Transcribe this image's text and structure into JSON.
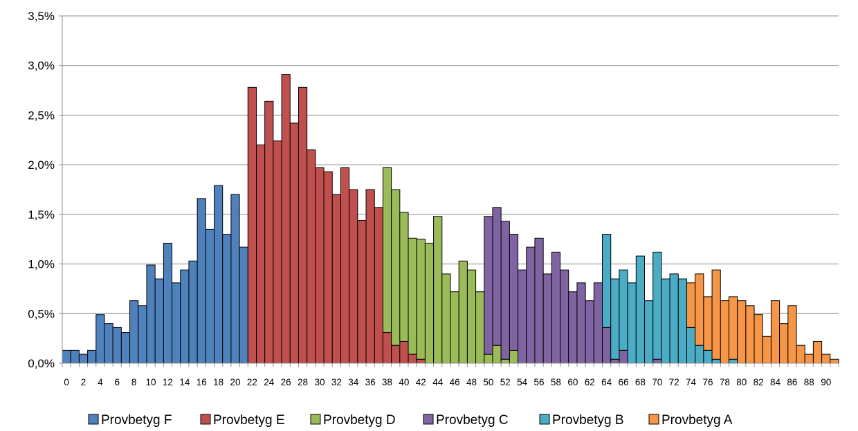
{
  "chart_data": {
    "type": "bar",
    "stacked": true,
    "x_start": 0,
    "x_step": 1,
    "x_count": 92,
    "xlabel": "",
    "ylabel": "",
    "ylim": [
      0,
      3.5
    ],
    "y_ticks": [
      0,
      0.5,
      1.0,
      1.5,
      2.0,
      2.5,
      3.0,
      3.5
    ],
    "y_tick_labels": [
      "0,0%",
      "0,5%",
      "1,0%",
      "1,5%",
      "2,0%",
      "2,5%",
      "3,0%",
      "3,5%"
    ],
    "x_tick_labels": [
      "0",
      "2",
      "4",
      "6",
      "8",
      "10",
      "12",
      "14",
      "16",
      "18",
      "20",
      "22",
      "24",
      "26",
      "28",
      "30",
      "32",
      "34",
      "36",
      "38",
      "40",
      "42",
      "44",
      "46",
      "48",
      "50",
      "52",
      "54",
      "56",
      "58",
      "60",
      "62",
      "64",
      "66",
      "68",
      "70",
      "72",
      "74",
      "76",
      "78",
      "80",
      "82",
      "84",
      "86",
      "88",
      "90"
    ],
    "grid": true,
    "legend_position": "bottom",
    "series": [
      {
        "name": "Provbetyg F",
        "color": "#4F81BD",
        "points": [
          [
            0,
            0.13
          ],
          [
            1,
            0.13
          ],
          [
            2,
            0.09
          ],
          [
            3,
            0.13
          ],
          [
            4,
            0.49
          ],
          [
            5,
            0.4
          ],
          [
            6,
            0.36
          ],
          [
            7,
            0.31
          ],
          [
            8,
            0.63
          ],
          [
            9,
            0.58
          ],
          [
            10,
            0.99
          ],
          [
            11,
            0.85
          ],
          [
            12,
            1.21
          ],
          [
            13,
            0.81
          ],
          [
            14,
            0.94
          ],
          [
            15,
            1.03
          ],
          [
            16,
            1.66
          ],
          [
            17,
            1.35
          ],
          [
            18,
            1.79
          ],
          [
            19,
            1.3
          ],
          [
            20,
            1.7
          ],
          [
            21,
            1.17
          ]
        ]
      },
      {
        "name": "Provbetyg E",
        "color": "#C0504D",
        "points": [
          [
            22,
            2.78
          ],
          [
            23,
            2.2
          ],
          [
            24,
            2.64
          ],
          [
            25,
            2.24
          ],
          [
            26,
            2.91
          ],
          [
            27,
            2.42
          ],
          [
            28,
            2.78
          ],
          [
            29,
            2.15
          ],
          [
            30,
            1.97
          ],
          [
            31,
            1.93
          ],
          [
            32,
            1.7
          ],
          [
            33,
            1.97
          ],
          [
            34,
            1.75
          ],
          [
            35,
            1.44
          ],
          [
            36,
            1.75
          ],
          [
            37,
            1.57
          ],
          [
            38,
            0.31
          ],
          [
            39,
            0.18
          ],
          [
            40,
            0.22
          ],
          [
            41,
            0.09
          ],
          [
            42,
            0.04
          ]
        ]
      },
      {
        "name": "Provbetyg D",
        "color": "#9BBB59",
        "points": [
          [
            38,
            1.66
          ],
          [
            39,
            1.57
          ],
          [
            40,
            1.3
          ],
          [
            41,
            1.17
          ],
          [
            42,
            1.21
          ],
          [
            43,
            1.21
          ],
          [
            44,
            1.48
          ],
          [
            45,
            0.9
          ],
          [
            46,
            0.72
          ],
          [
            47,
            1.03
          ],
          [
            48,
            0.94
          ],
          [
            49,
            0.72
          ],
          [
            50,
            0.09
          ],
          [
            51,
            0.18
          ],
          [
            52,
            0.04
          ],
          [
            53,
            0.13
          ]
        ]
      },
      {
        "name": "Provbetyg C",
        "color": "#8064A2",
        "points": [
          [
            50,
            1.39
          ],
          [
            51,
            1.39
          ],
          [
            52,
            1.39
          ],
          [
            53,
            1.17
          ],
          [
            54,
            0.94
          ],
          [
            55,
            1.17
          ],
          [
            56,
            1.26
          ],
          [
            57,
            0.9
          ],
          [
            58,
            1.12
          ],
          [
            59,
            0.94
          ],
          [
            60,
            0.72
          ],
          [
            61,
            0.81
          ],
          [
            62,
            0.63
          ],
          [
            63,
            0.81
          ],
          [
            64,
            0.36
          ],
          [
            65,
            0.04
          ],
          [
            66,
            0.13
          ],
          [
            70,
            0.04
          ]
        ]
      },
      {
        "name": "Provbetyg B",
        "color": "#4BACC6",
        "points": [
          [
            64,
            0.94
          ],
          [
            65,
            0.81
          ],
          [
            66,
            0.81
          ],
          [
            67,
            0.81
          ],
          [
            68,
            1.08
          ],
          [
            69,
            0.63
          ],
          [
            70,
            1.08
          ],
          [
            71,
            0.85
          ],
          [
            72,
            0.9
          ],
          [
            73,
            0.85
          ],
          [
            74,
            0.36
          ],
          [
            75,
            0.18
          ],
          [
            76,
            0.13
          ],
          [
            77,
            0.04
          ],
          [
            79,
            0.04
          ]
        ]
      },
      {
        "name": "Provbetyg A",
        "color": "#F79646",
        "points": [
          [
            74,
            0.45
          ],
          [
            75,
            0.72
          ],
          [
            76,
            0.54
          ],
          [
            77,
            0.9
          ],
          [
            78,
            0.63
          ],
          [
            79,
            0.63
          ],
          [
            80,
            0.63
          ],
          [
            81,
            0.58
          ],
          [
            82,
            0.49
          ],
          [
            83,
            0.27
          ],
          [
            84,
            0.63
          ],
          [
            85,
            0.4
          ],
          [
            86,
            0.58
          ],
          [
            87,
            0.18
          ],
          [
            88,
            0.09
          ],
          [
            89,
            0.22
          ],
          [
            90,
            0.09
          ],
          [
            91,
            0.04
          ]
        ]
      }
    ]
  }
}
